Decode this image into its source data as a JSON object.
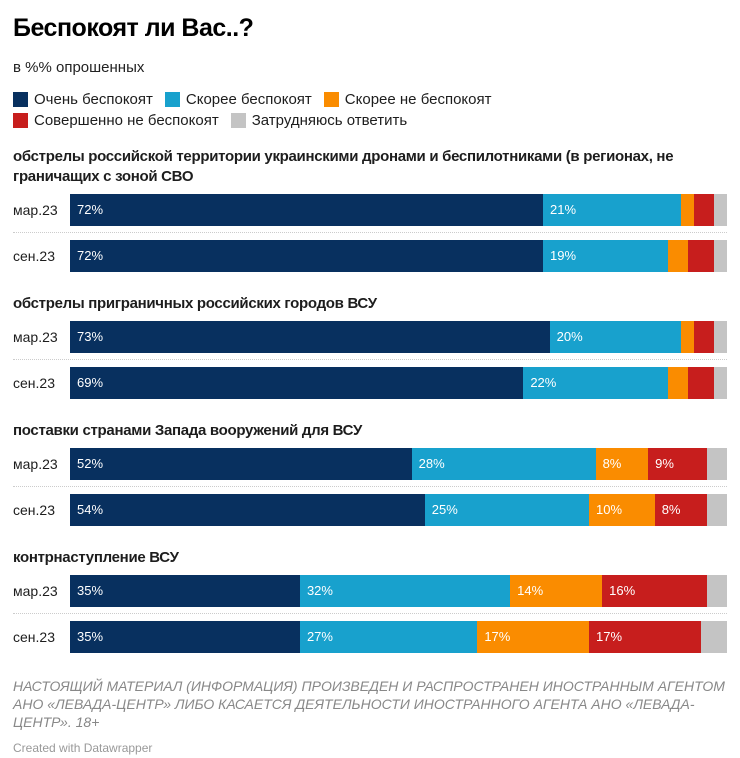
{
  "chart_data": {
    "type": "bar",
    "orientation": "horizontal-stacked",
    "title": "Беспокоят ли Вас..?",
    "subtitle": "в %% опрошенных",
    "legend": "top",
    "series": [
      {
        "name": "Очень беспокоят",
        "color": "#08305f"
      },
      {
        "name": "Скорее беспокоят",
        "color": "#18a1cd"
      },
      {
        "name": "Скорее не беспокоят",
        "color": "#fa8c00"
      },
      {
        "name": "Совершенно не беспокоят",
        "color": "#c71e1d"
      },
      {
        "name": "Затрудняюсь ответить",
        "color": "#c4c4c4"
      }
    ],
    "groups": [
      {
        "title": "обстрелы российской территории украинскими дронами и беспилотниками (в регионах, не граничащих с зоной СВО",
        "rows": [
          {
            "label": "мар.23",
            "values": [
              72,
              21,
              2,
              3,
              2
            ]
          },
          {
            "label": "сен.23",
            "values": [
              72,
              19,
              3,
              4,
              2
            ]
          }
        ]
      },
      {
        "title": "обстрелы приграничных российских городов ВСУ",
        "rows": [
          {
            "label": "мар.23",
            "values": [
              73,
              20,
              2,
              3,
              2
            ]
          },
          {
            "label": "сен.23",
            "values": [
              69,
              22,
              3,
              4,
              2
            ]
          }
        ]
      },
      {
        "title": "поставки странами Запада вооружений для ВСУ",
        "rows": [
          {
            "label": "мар.23",
            "values": [
              52,
              28,
              8,
              9,
              3
            ]
          },
          {
            "label": "сен.23",
            "values": [
              54,
              25,
              10,
              8,
              3
            ]
          }
        ]
      },
      {
        "title": "контрнаступление ВСУ",
        "rows": [
          {
            "label": "мар.23",
            "values": [
              35,
              32,
              14,
              16,
              3
            ]
          },
          {
            "label": "сен.23",
            "values": [
              35,
              27,
              17,
              17,
              4
            ]
          }
        ]
      }
    ]
  },
  "note": "НАСТОЯЩИЙ МАТЕРИАЛ (ИНФОРМАЦИЯ) ПРОИЗВЕДЕН И РАСПРОСТРАНЕН ИНОСТРАННЫМ АГЕНТОМ АНО «ЛЕВАДА-ЦЕНТР» ЛИБО КАСАЕТСЯ ДЕЯТЕЛЬНОСТИ ИНОСТРАННОГО АГЕНТА АНО «ЛЕВАДА-ЦЕНТР». 18+",
  "credit": "Created with Datawrapper"
}
